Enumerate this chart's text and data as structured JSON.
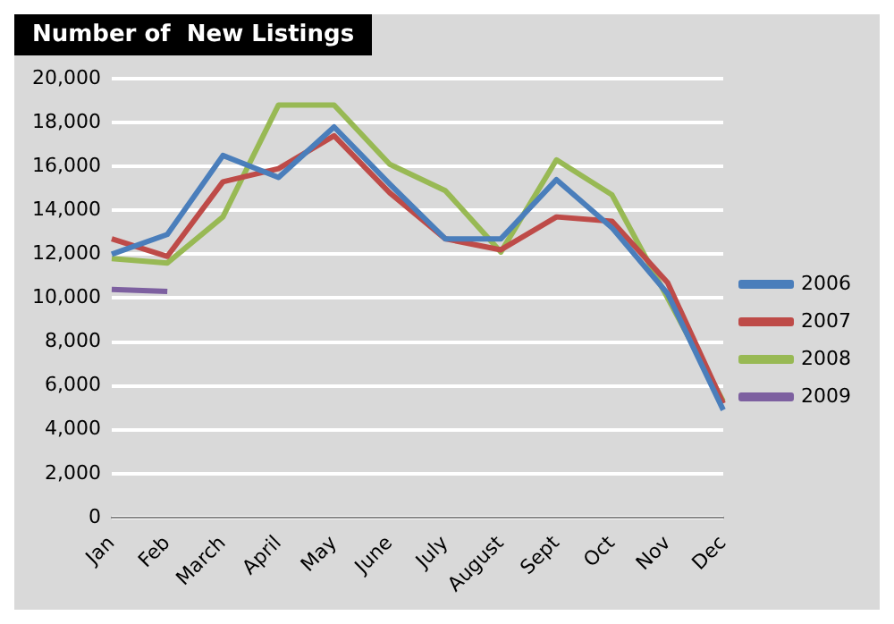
{
  "chart_data": {
    "type": "line",
    "title": "Number of  New Listings",
    "categories": [
      "Jan",
      "Feb",
      "March",
      "April",
      "May",
      "June",
      "July",
      "August",
      "Sept",
      "Oct",
      "Nov",
      "Dec"
    ],
    "series": [
      {
        "name": "2006",
        "color": "#4a7ebb",
        "values": [
          12000,
          12900,
          16500,
          15500,
          17800,
          15200,
          12700,
          12700,
          15400,
          13200,
          10200,
          4900
        ]
      },
      {
        "name": "2007",
        "color": "#be4b48",
        "values": [
          12700,
          11900,
          15300,
          15900,
          17400,
          14800,
          12700,
          12200,
          13700,
          13500,
          10700,
          5200
        ]
      },
      {
        "name": "2008",
        "color": "#98b954",
        "values": [
          11800,
          11600,
          13700,
          18800,
          18800,
          16100,
          14900,
          12100,
          16300,
          14700,
          10000,
          5300
        ]
      },
      {
        "name": "2009",
        "color": "#7d60a0",
        "values": [
          10400,
          10300,
          null,
          null,
          null,
          null,
          null,
          null,
          null,
          null,
          null,
          null
        ]
      }
    ],
    "ylim": [
      0,
      20000
    ],
    "yticks": [
      {
        "value": 0,
        "label": "0"
      },
      {
        "value": 2000,
        "label": "2,000"
      },
      {
        "value": 4000,
        "label": "4,000"
      },
      {
        "value": 6000,
        "label": "6,000"
      },
      {
        "value": 8000,
        "label": "8,000"
      },
      {
        "value": 10000,
        "label": "10,000"
      },
      {
        "value": 12000,
        "label": "12,000"
      },
      {
        "value": 14000,
        "label": "14,000"
      },
      {
        "value": 16000,
        "label": "16,000"
      },
      {
        "value": 18000,
        "label": "18,000"
      },
      {
        "value": 20000,
        "label": "20,000"
      }
    ],
    "grid": "y",
    "legend": "right",
    "marker": "none",
    "line_style": "solid"
  }
}
